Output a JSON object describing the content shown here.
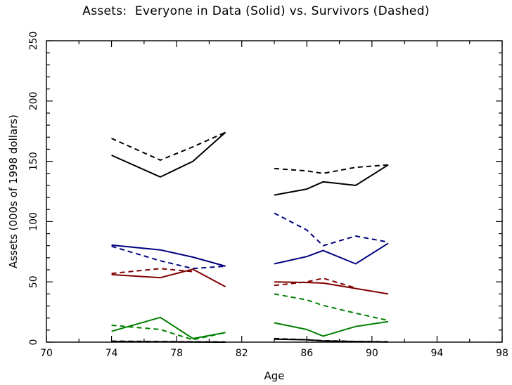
{
  "chart_data": {
    "type": "line",
    "title": "Assets:  Everyone in Data (Solid) vs. Survivors (Dashed)",
    "xlabel": "Age",
    "ylabel": "Assets (000s of 1998 dollars)",
    "xlim": [
      70,
      98
    ],
    "ylim": [
      0,
      250
    ],
    "xticks": [
      70,
      74,
      78,
      82,
      86,
      90,
      94,
      98
    ],
    "yticks": [
      0,
      50,
      100,
      150,
      200,
      250
    ],
    "grid": false,
    "legend": "none",
    "series": [
      {
        "color": "#000000",
        "dash": false,
        "segments": [
          [
            [
              74,
              155
            ],
            [
              77,
              137
            ],
            [
              79,
              150
            ],
            [
              81,
              174
            ]
          ],
          [
            [
              84,
              122
            ],
            [
              86,
              127
            ],
            [
              87,
              133
            ],
            [
              89,
              130
            ],
            [
              91,
              147
            ]
          ]
        ]
      },
      {
        "color": "#000000",
        "dash": true,
        "segments": [
          [
            [
              74,
              169
            ],
            [
              77,
              151
            ],
            [
              79,
              162
            ],
            [
              81,
              174
            ]
          ],
          [
            [
              84,
              144
            ],
            [
              86,
              142
            ],
            [
              87,
              140
            ],
            [
              89,
              145
            ],
            [
              91,
              147
            ]
          ]
        ]
      },
      {
        "color": "#00007f",
        "dash": false,
        "segments": [
          [
            [
              74,
              80.5
            ],
            [
              77,
              76.5
            ],
            [
              79,
              70.5
            ],
            [
              81,
              63
            ]
          ],
          [
            [
              84,
              65
            ],
            [
              86,
              71
            ],
            [
              87,
              76
            ],
            [
              89,
              65
            ],
            [
              91,
              82
            ]
          ]
        ]
      },
      {
        "color": "#00007f",
        "dash": true,
        "segments": [
          [
            [
              74,
              79.5
            ],
            [
              77,
              67.5
            ],
            [
              79,
              61
            ],
            [
              81,
              63
            ]
          ],
          [
            [
              84,
              107
            ],
            [
              86,
              93
            ],
            [
              87,
              80
            ],
            [
              89,
              88
            ],
            [
              91,
              83
            ]
          ]
        ]
      },
      {
        "color": "#7f0000",
        "dash": false,
        "segments": [
          [
            [
              74,
              56
            ],
            [
              77,
              53.5
            ],
            [
              79,
              60.5
            ],
            [
              81,
              46
            ]
          ],
          [
            [
              84,
              50
            ],
            [
              86,
              49.5
            ],
            [
              87,
              49
            ],
            [
              89,
              44.5
            ],
            [
              91,
              40
            ]
          ]
        ]
      },
      {
        "color": "#7f0000",
        "dash": true,
        "segments": [
          [
            [
              74,
              57
            ],
            [
              77,
              61
            ],
            [
              79,
              58.5
            ]
          ],
          [
            [
              84,
              47
            ],
            [
              86,
              50
            ],
            [
              87,
              53
            ],
            [
              89,
              45
            ]
          ]
        ]
      },
      {
        "color": "#007f00",
        "dash": false,
        "segments": [
          [
            [
              74,
              9
            ],
            [
              77,
              20.5
            ],
            [
              79,
              3
            ],
            [
              81,
              8
            ]
          ],
          [
            [
              84,
              16
            ],
            [
              86,
              10.5
            ],
            [
              87,
              5
            ],
            [
              89,
              13
            ],
            [
              91,
              17
            ]
          ]
        ]
      },
      {
        "color": "#007f00",
        "dash": true,
        "segments": [
          [
            [
              74,
              14
            ],
            [
              77,
              10.5
            ],
            [
              79,
              2
            ],
            [
              81,
              8
            ]
          ],
          [
            [
              84,
              40
            ],
            [
              86,
              35
            ],
            [
              87,
              30.5
            ],
            [
              89,
              24
            ],
            [
              91,
              18
            ]
          ]
        ]
      },
      {
        "color": "#000000",
        "dash": false,
        "segments": [
          [
            [
              74,
              0.5
            ],
            [
              77,
              0.3
            ],
            [
              79,
              0.2
            ],
            [
              81,
              0
            ]
          ],
          [
            [
              84,
              2.5
            ],
            [
              86,
              2
            ],
            [
              87,
              1
            ],
            [
              89,
              0.5
            ],
            [
              91,
              0.2
            ]
          ]
        ]
      },
      {
        "color": "#000000",
        "dash": true,
        "segments": [
          [
            [
              74,
              0.8
            ],
            [
              77,
              0.5
            ],
            [
              79,
              0.3
            ],
            [
              81,
              0.1
            ]
          ],
          [
            [
              84,
              3
            ],
            [
              86,
              2
            ],
            [
              87,
              1.2
            ],
            [
              89,
              0.6
            ],
            [
              91,
              0.3
            ]
          ]
        ]
      }
    ]
  }
}
